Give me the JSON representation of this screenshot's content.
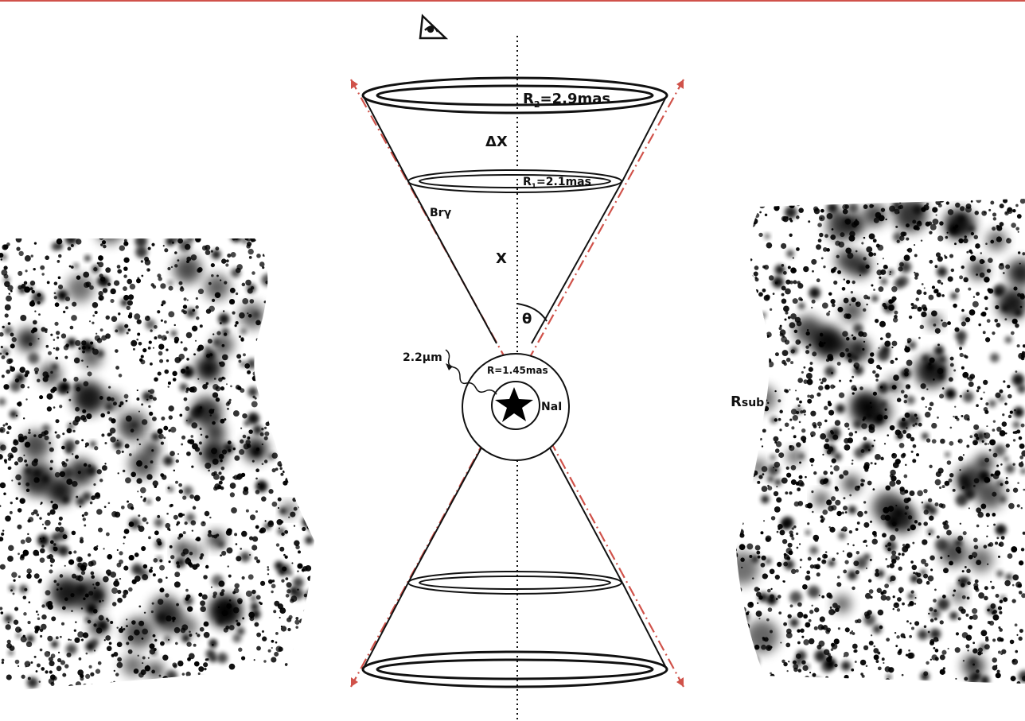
{
  "colors": {
    "line": "#111111",
    "accent": "#d0524a",
    "dust": "#000000",
    "background": "#ffffff"
  },
  "icons": {
    "observer": "eye-icon",
    "star": "star-icon",
    "photon": "wavy-photon-arrow-icon"
  },
  "labels": {
    "r2": {
      "main": "R",
      "sub": "2",
      "rest": "=2.9mas"
    },
    "r1": {
      "main": "R",
      "sub": "1",
      "rest": "=2.1mas"
    },
    "delta_x": "ΔX",
    "x": "X",
    "bry": "Brγ",
    "theta": "θ",
    "wavelength": "2.2μm",
    "r_inner": "R=1.45mas",
    "nai": "NaI",
    "rsub": {
      "main": "R",
      "sub": "sub"
    }
  }
}
